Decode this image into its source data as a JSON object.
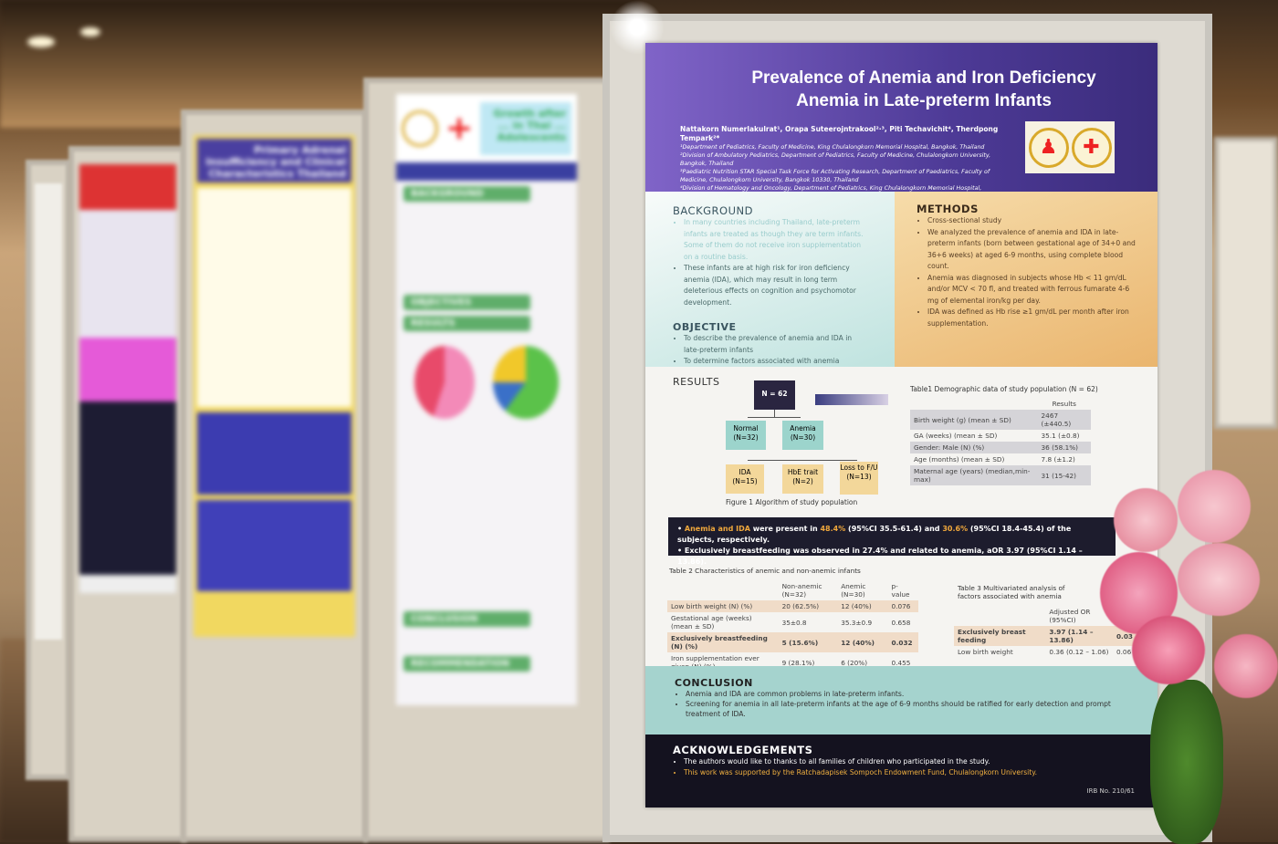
{
  "background_posters": {
    "p4_title": "Growth after ... in Thai ... Adolescents",
    "p4_sections": [
      "BACKGROUND",
      "OBJECTIVES",
      "RESULTS",
      "CONCLUSION",
      "RECOMMENDATION"
    ],
    "p3_title": "Primary Adrenal Insufficiency and Clinical Characteristics Thailand"
  },
  "poster": {
    "title": "Prevalence of Anemia and Iron Deficiency Anemia in Late-preterm Infants",
    "authors": "Nattakorn Numerlakulrat¹, Orapa Suteerojntrakool²·³, Piti Techavichit⁴, Therdpong Tempark²*",
    "affiliations": [
      "¹Department of Pediatrics, Faculty of Medicine, King Chulalongkorn Memorial Hospital, Bangkok, Thailand",
      "²Division of Ambulatory Pediatrics, Department of Pediatrics, Faculty of Medicine, Chulalongkorn University, Bangkok, Thailand",
      "³Paediatric Nutrition STAR Special Task Force for Activating Research, Department of Paediatrics, Faculty of Medicine, Chulalongkorn University, Bangkok 10330, Thailand",
      "⁴Division of Hematology and Oncology, Department of Pediatrics, King Chulalongkorn Memorial Hospital, Bangkok, Thailand"
    ],
    "background": {
      "heading": "BACKGROUND",
      "items": [
        "In many countries including Thailand, late-preterm infants are treated as though they are term infants. Some of them do not receive iron supplementation on a routine basis.",
        "These infants are at high risk for iron deficiency anemia (IDA), which may result in long term deleterious effects on cognition and psychomotor development."
      ]
    },
    "objective": {
      "heading": "OBJECTIVE",
      "items": [
        "To describe the prevalence of anemia and IDA in late-preterm infants",
        "To determine factors associated with anemia"
      ]
    },
    "methods": {
      "heading": "METHODS",
      "items": [
        "Cross-sectional study",
        "We analyzed the prevalence of anemia and IDA in late-preterm infants (born between gestational age of 34+0 and 36+6 weeks) at aged 6-9 months, using complete blood count.",
        "Anemia was diagnosed in subjects whose Hb < 11 gm/dL and/or MCV < 70 fl, and treated with ferrous fumarate 4-6 mg of elemental iron/kg per day.",
        "IDA was defined as Hb rise ≥1 gm/dL per month after iron supplementation."
      ]
    },
    "results": {
      "heading": "RESULTS",
      "flow": {
        "total": "N = 62",
        "normal": "Normal (N=32)",
        "anemia": "Anemia (N=30)",
        "ida": "IDA (N=15)",
        "hbe": "HbE trait (N=2)",
        "loss": "Loss to F/U (N=13)",
        "caption": "Figure 1 Algorithm of study population"
      },
      "table1": {
        "title": "Table1 Demographic data of study population (N = 62)",
        "header": "Results",
        "rows": [
          [
            "Birth weight (g) (mean ± SD)",
            "2467 (±440.5)"
          ],
          [
            "GA (weeks) (mean ± SD)",
            "35.1 (±0.8)"
          ],
          [
            "Gender: Male (N) (%)",
            "36 (58.1%)"
          ],
          [
            "Age (months) (mean ± SD)",
            "7.8 (±1.2)"
          ],
          [
            "Maternal age (years) (median,min-max)",
            "31 (15-42)"
          ]
        ]
      },
      "highlights": {
        "line1": {
          "a": "Anemia and IDA",
          "b": " were present in ",
          "c": "48.4%",
          "d": " (95%CI 35.5-61.4) and ",
          "e": "30.6%",
          "f": " (95%CI 18.4-45.4) of the subjects, respectively."
        },
        "line2": "Exclusively breastfeeding was observed in 27.4% and related to anemia, aOR 3.97 (95%CI 1.14 – 13.86)."
      },
      "table2": {
        "title": "Table 2 Characteristics of anemic and non-anemic infants",
        "headers": [
          "",
          "Non-anemic (N=32)",
          "Anemic (N=30)",
          "p-value"
        ],
        "rows": [
          [
            "Low birth weight (N) (%)",
            "20 (62.5%)",
            "12 (40%)",
            "0.076"
          ],
          [
            "Gestational age (weeks) (mean ± SD)",
            "35±0.8",
            "35.3±0.9",
            "0.658"
          ],
          [
            "Exclusively breastfeeding (N) (%)",
            "5 (15.6%)",
            "12 (40%)",
            "0.032"
          ],
          [
            "Iron supplementation ever given (N) (%)",
            "9 (28.1%)",
            "6 (20%)",
            "0.455"
          ]
        ]
      },
      "table3": {
        "title": "Table 3 Multivariated analysis of factors associated with anemia",
        "headers": [
          "",
          "Adjusted OR (95%CI)",
          "p-va"
        ],
        "rows": [
          [
            "Exclusively breast feeding",
            "3.97 (1.14 – 13.86)",
            "0.03"
          ],
          [
            "Low birth weight",
            "0.36 (0.12 – 1.06)",
            "0.06"
          ]
        ]
      }
    },
    "conclusion": {
      "heading": "CONCLUSION",
      "items": [
        "Anemia and IDA are common problems in late-preterm infants.",
        "Screening for anemia in all late-preterm infants at the age of 6-9 months should be ratified for early detection and prompt treatment of IDA."
      ]
    },
    "acknowledgements": {
      "heading": "ACKNOWLEDGEMENTS",
      "items": [
        "The authors would like to thanks to all families of children who participated in the study.",
        "This work was supported by the Ratchadapisek Sompoch Endowment Fund, Chulalongkorn University."
      ],
      "irb": "IRB No. 210/61"
    }
  }
}
